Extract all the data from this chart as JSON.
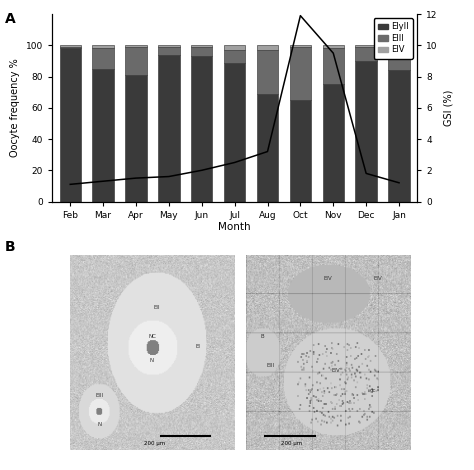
{
  "months": [
    "Feb",
    "Mar",
    "Apr",
    "May",
    "Jun",
    "Jul",
    "Aug",
    "Oct",
    "Nov",
    "Dec",
    "Jan"
  ],
  "elyII": [
    98,
    85,
    81,
    94,
    93,
    89,
    69,
    65,
    75,
    90,
    84
  ],
  "eIII": [
    1,
    13,
    18,
    5,
    6,
    8,
    28,
    34,
    23,
    9,
    9
  ],
  "eIV": [
    1,
    2,
    1,
    1,
    1,
    3,
    3,
    1,
    2,
    1,
    7
  ],
  "gsi": [
    1.1,
    1.3,
    1.5,
    1.6,
    2.0,
    2.5,
    3.2,
    11.9,
    9.5,
    1.8,
    1.2
  ],
  "colors_elyII": "#3a3a3a",
  "colors_eIII": "#6a6a6a",
  "colors_eIV": "#a0a0a0",
  "bar_edge_color": "#2a2a2a",
  "line_color": "#000000",
  "background_color": "#ffffff",
  "panel_bg": "#d8d8d8",
  "ylabel_left": "Oocyte frequency %",
  "ylabel_right": "GSI (%)",
  "xlabel": "Month",
  "ylim_left": [
    0,
    120
  ],
  "ylim_right": [
    0,
    12
  ],
  "yticks_left": [
    0,
    20,
    40,
    60,
    80,
    100
  ],
  "yticks_right": [
    0,
    2,
    4,
    6,
    8,
    10,
    12
  ],
  "label_A": "A",
  "label_B": "B",
  "legend_labels": [
    "ElyII",
    "EIII",
    "EIV"
  ]
}
